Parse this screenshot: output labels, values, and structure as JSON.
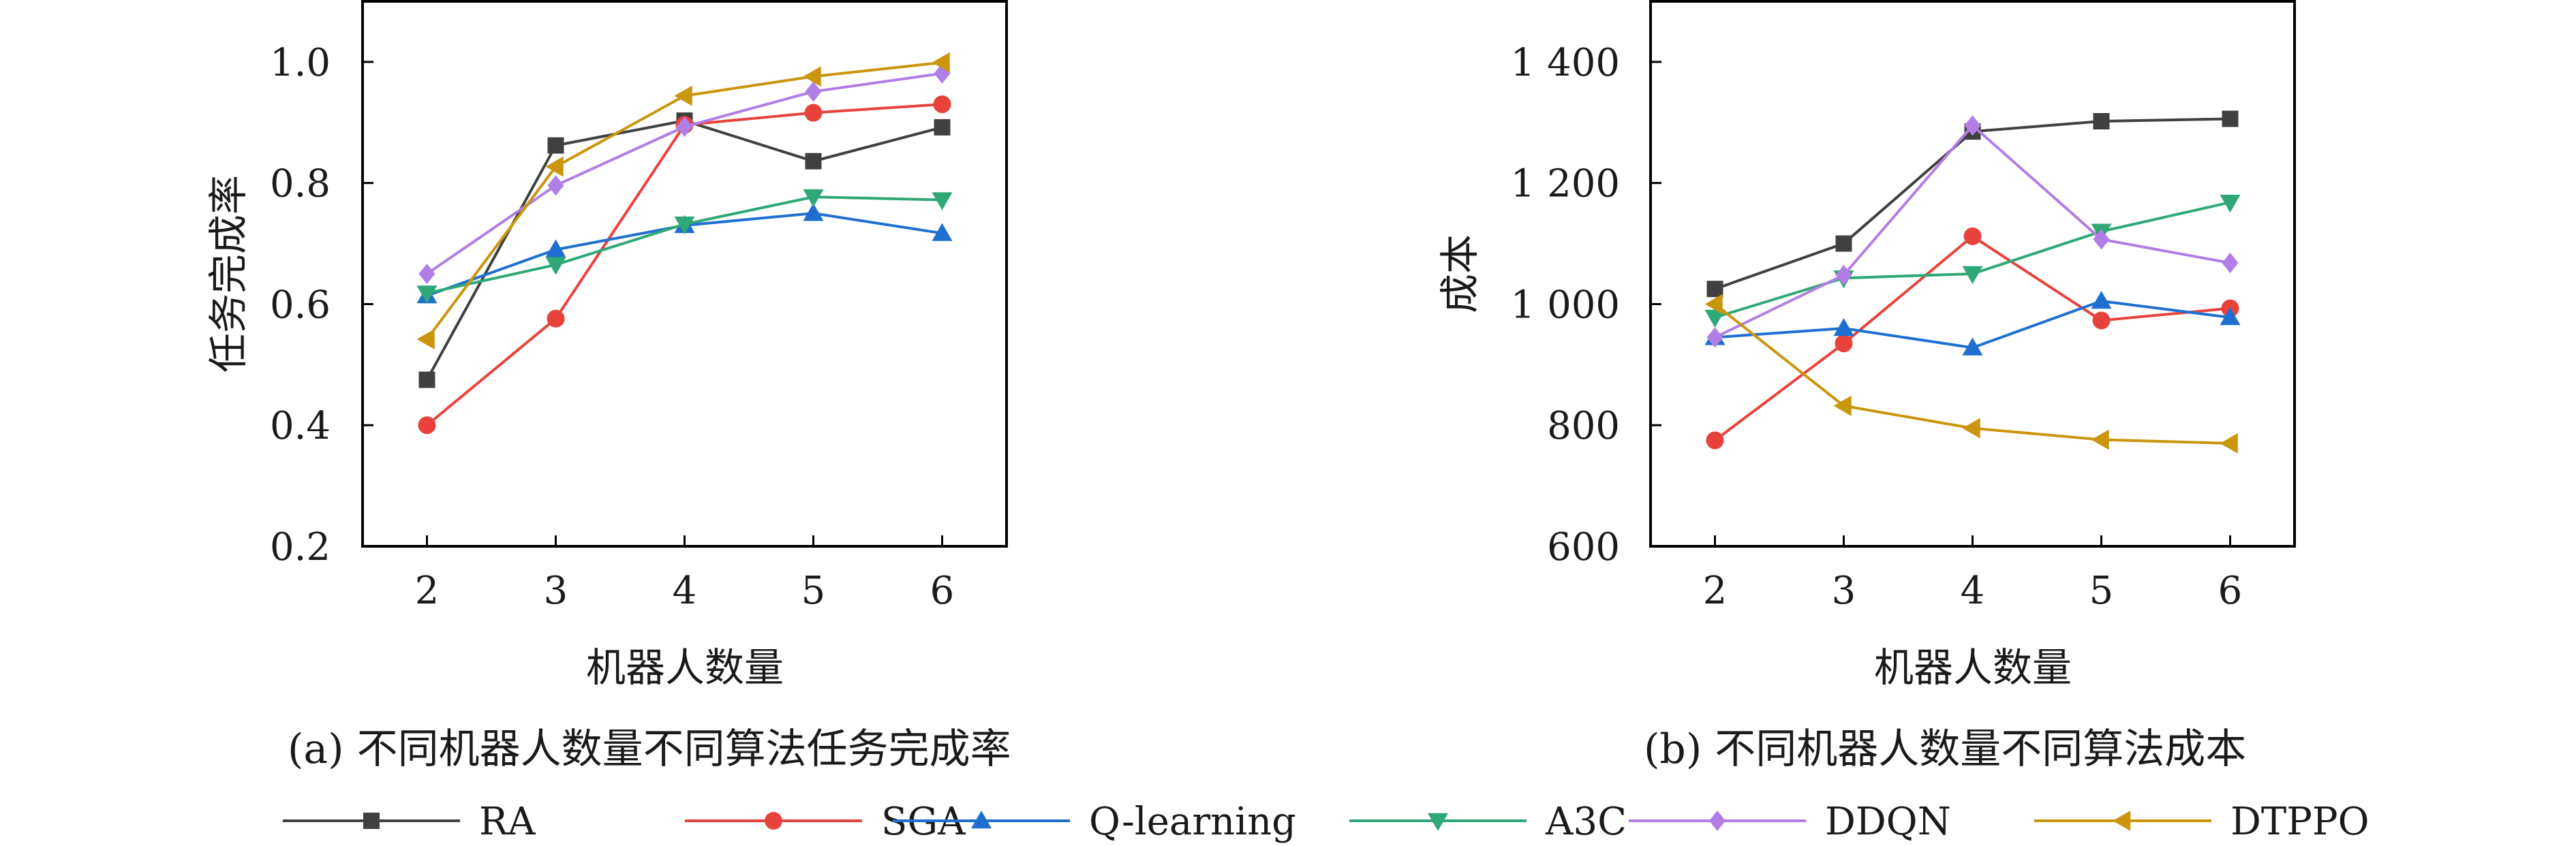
{
  "chart_data": [
    {
      "type": "line",
      "caption": "(a) 不同机器人数量不同算法任务完成率",
      "xlabel": "机器人数量",
      "ylabel": "任务完成率",
      "x": [
        2,
        3,
        4,
        5,
        6
      ],
      "xticks": [
        "2",
        "3",
        "4",
        "5",
        "6"
      ],
      "xlim": [
        1.5,
        6.5
      ],
      "ylim": [
        0.2,
        1.1
      ],
      "yticks": [
        0.2,
        0.4,
        0.6,
        0.8,
        1.0
      ],
      "ytick_labels": [
        "0.2",
        "0.4",
        "0.6",
        "0.8",
        "1.0"
      ],
      "grid": false,
      "series": [
        {
          "name": "RA",
          "values": [
            0.475,
            0.862,
            0.903,
            0.836,
            0.892
          ]
        },
        {
          "name": "SGA",
          "values": [
            0.4,
            0.576,
            0.896,
            0.916,
            0.93
          ]
        },
        {
          "name": "Q-learning",
          "values": [
            0.614,
            0.69,
            0.73,
            0.75,
            0.717
          ]
        },
        {
          "name": "A3C",
          "values": [
            0.618,
            0.665,
            0.732,
            0.777,
            0.772
          ]
        },
        {
          "name": "DDQN",
          "values": [
            0.65,
            0.796,
            0.893,
            0.951,
            0.981
          ]
        },
        {
          "name": "DTPPO",
          "values": [
            0.542,
            0.827,
            0.944,
            0.976,
            0.999
          ]
        }
      ]
    },
    {
      "type": "line",
      "caption": "(b) 不同机器人数量不同算法成本",
      "xlabel": "机器人数量",
      "ylabel": "成本",
      "x": [
        2,
        3,
        4,
        5,
        6
      ],
      "xticks": [
        "2",
        "3",
        "4",
        "5",
        "6"
      ],
      "xlim": [
        1.5,
        6.5
      ],
      "ylim": [
        600,
        1500
      ],
      "yticks": [
        600,
        800,
        1000,
        1200,
        1400
      ],
      "ytick_labels": [
        "600",
        "800",
        "1 000",
        "1 200",
        "1 400"
      ],
      "grid": false,
      "series": [
        {
          "name": "RA",
          "values": [
            1025,
            1100,
            1285,
            1302,
            1306
          ]
        },
        {
          "name": "SGA",
          "values": [
            775,
            935,
            1112,
            973,
            993
          ]
        },
        {
          "name": "Q-learning",
          "values": [
            945,
            960,
            928,
            1005,
            978
          ]
        },
        {
          "name": "A3C",
          "values": [
            978,
            1043,
            1050,
            1120,
            1168
          ]
        },
        {
          "name": "DDQN",
          "values": [
            945,
            1048,
            1295,
            1107,
            1068
          ]
        },
        {
          "name": "DTPPO",
          "values": [
            1000,
            832,
            795,
            776,
            770
          ]
        }
      ]
    }
  ],
  "legend": {
    "placement": "bottom",
    "entries": [
      {
        "name": "RA",
        "color": "#404040",
        "marker": "square"
      },
      {
        "name": "SGA",
        "color": "#e8423c",
        "marker": "circle"
      },
      {
        "name": "Q-learning",
        "color": "#1f6fd1",
        "marker": "triangle-up"
      },
      {
        "name": "A3C",
        "color": "#2ea876",
        "marker": "triangle-down"
      },
      {
        "name": "DDQN",
        "color": "#b17ee6",
        "marker": "diamond"
      },
      {
        "name": "DTPPO",
        "color": "#c9960e",
        "marker": "triangle-left"
      }
    ]
  }
}
